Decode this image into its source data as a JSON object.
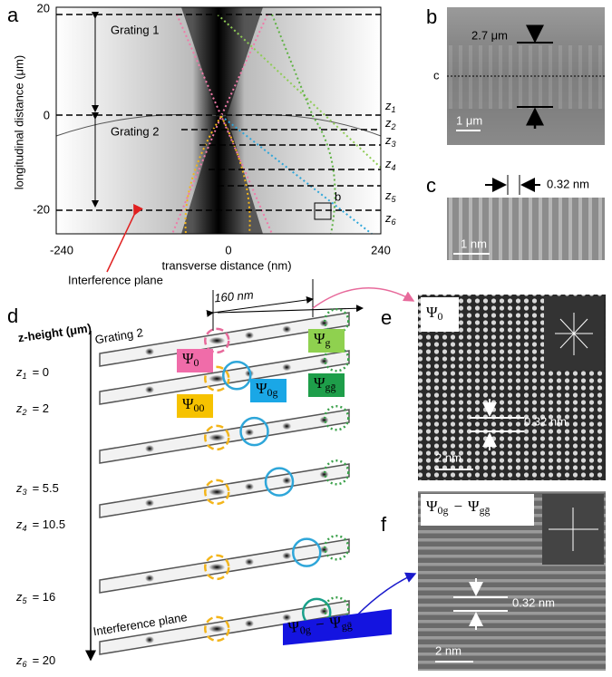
{
  "panels": {
    "a": {
      "label": "a",
      "y_axis_label": "longitudinal distance (μm)",
      "y_ticks": [
        "20",
        "0",
        "-20"
      ],
      "x_axis_label": "transverse distance (nm)",
      "x_ticks": [
        "-240",
        "0",
        "240"
      ],
      "gratings": [
        "Grating 1",
        "Grating 2"
      ],
      "planes": [
        {
          "symbol": "z",
          "subscript": "1"
        },
        {
          "symbol": "z",
          "subscript": "2"
        },
        {
          "symbol": "z",
          "subscript": "3"
        },
        {
          "symbol": "z",
          "subscript": "4"
        },
        {
          "symbol": "z",
          "subscript": "5"
        },
        {
          "symbol": "z",
          "subscript": "6"
        }
      ],
      "interference_plane": "Interference plane",
      "inset_marker": "b"
    },
    "b": {
      "label": "b",
      "spacing": "2.7 μm",
      "cut_marker": "c",
      "scale_bar": "1 μm"
    },
    "c": {
      "label": "c",
      "spacing": "0.32 nm",
      "scale_bar": "1 nm"
    },
    "d": {
      "label": "d",
      "width": "160 nm",
      "axis_label": "z-height (μm)",
      "grating": "Grating 2",
      "rows": [
        {
          "symbol": "z",
          "subscript": "1",
          "value": "= 0"
        },
        {
          "symbol": "z",
          "subscript": "2",
          "value": "= 2"
        },
        {
          "symbol": "z",
          "subscript": "3",
          "value": "= 5.5"
        },
        {
          "symbol": "z",
          "subscript": "4",
          "value": "= 10.5"
        },
        {
          "symbol": "z",
          "subscript": "5",
          "value": "= 16"
        },
        {
          "symbol": "z",
          "subscript": "6",
          "value": "= 20"
        }
      ],
      "interference_plane": "Interference plane",
      "beams": [
        {
          "symbol": "Ψ",
          "subscript": "0"
        },
        {
          "symbol": "Ψ",
          "subscript": "00"
        },
        {
          "symbol": "Ψ",
          "subscript": "0g"
        },
        {
          "symbol": "Ψ",
          "subscript": "g"
        },
        {
          "symbol": "Ψ",
          "subscript": "gḡ"
        }
      ],
      "difference": {
        "symbol": "Ψ",
        "subscript": "0g",
        "operator": "−",
        "symbol2": "Ψ",
        "subscript2": "gḡ"
      }
    },
    "e": {
      "label": "e",
      "beam": {
        "symbol": "Ψ",
        "subscript": "0"
      },
      "spacing": "0.32 nm",
      "scale_bar": "2 nm"
    },
    "f": {
      "label": "f",
      "difference": {
        "symbol": "Ψ",
        "subscript": "0g",
        "operator": "−",
        "symbol2": "Ψ",
        "subscript2": "gḡ"
      },
      "spacing": "0.32 nm",
      "scale_bar": "2 nm"
    }
  }
}
